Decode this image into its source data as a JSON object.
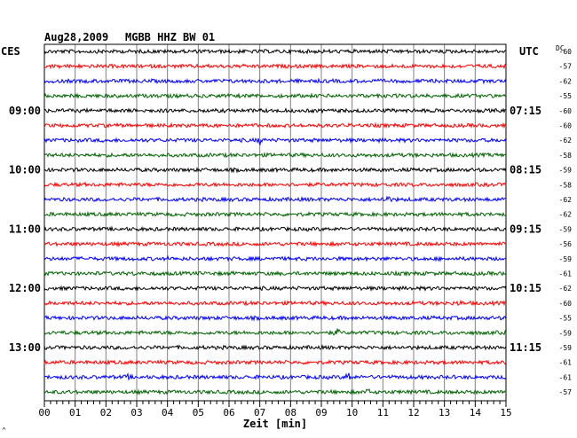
{
  "header": {
    "date": "Aug28,2009",
    "station": "MGBB HHZ BW 01",
    "left_zone": "CES",
    "right_zone": "UTC",
    "dc_label": "DC"
  },
  "footer": {
    "xlabel": "Zeit [min]",
    "corner_mark": "^"
  },
  "colors": {
    "cycle": [
      "#000000",
      "#ff0000",
      "#0000ff",
      "#006400"
    ],
    "grid": "#808080"
  },
  "chart_data": {
    "type": "line",
    "title": "Aug28,2009   MGBB HHZ BW 01",
    "xlabel": "Zeit [min]",
    "ylabel": "",
    "xlim": [
      0,
      15
    ],
    "x_ticks": [
      "00",
      "01",
      "02",
      "03",
      "04",
      "05",
      "06",
      "07",
      "08",
      "09",
      "10",
      "11",
      "12",
      "13",
      "14",
      "15"
    ],
    "trace_count": 24,
    "left_time_labels": [
      {
        "row": 4,
        "text": "09:00"
      },
      {
        "row": 8,
        "text": "10:00"
      },
      {
        "row": 12,
        "text": "11:00"
      },
      {
        "row": 16,
        "text": "12:00"
      },
      {
        "row": 20,
        "text": "13:00"
      }
    ],
    "right_time_labels": [
      {
        "row": 4,
        "text": "07:15"
      },
      {
        "row": 8,
        "text": "08:15"
      },
      {
        "row": 12,
        "text": "09:15"
      },
      {
        "row": 16,
        "text": "10:15"
      },
      {
        "row": 20,
        "text": "11:15"
      }
    ],
    "dc_offsets": [
      "-60",
      "-57",
      "-62",
      "-55",
      "-60",
      "-60",
      "-62",
      "-58",
      "-59",
      "-58",
      "-62",
      "-62",
      "-59",
      "-56",
      "-59",
      "-61",
      "-62",
      "-60",
      "-55",
      "-59",
      "-59",
      "-61",
      "-61",
      "-57"
    ],
    "events": [
      {
        "row": 6,
        "minute": 7.0,
        "amp": 5
      },
      {
        "row": 10,
        "minute": 11.1,
        "amp": 6
      },
      {
        "row": 14,
        "minute": 4.0,
        "amp": 3
      },
      {
        "row": 14,
        "minute": 7.4,
        "amp": 3
      },
      {
        "row": 15,
        "minute": 3.0,
        "amp": 4
      },
      {
        "row": 17,
        "minute": 13.5,
        "amp": 4
      },
      {
        "row": 19,
        "minute": 9.5,
        "amp": 5
      },
      {
        "row": 22,
        "minute": 2.7,
        "amp": 4
      },
      {
        "row": 22,
        "minute": 9.9,
        "amp": 6
      },
      {
        "row": 23,
        "minute": 10.5,
        "amp": 4
      }
    ]
  }
}
